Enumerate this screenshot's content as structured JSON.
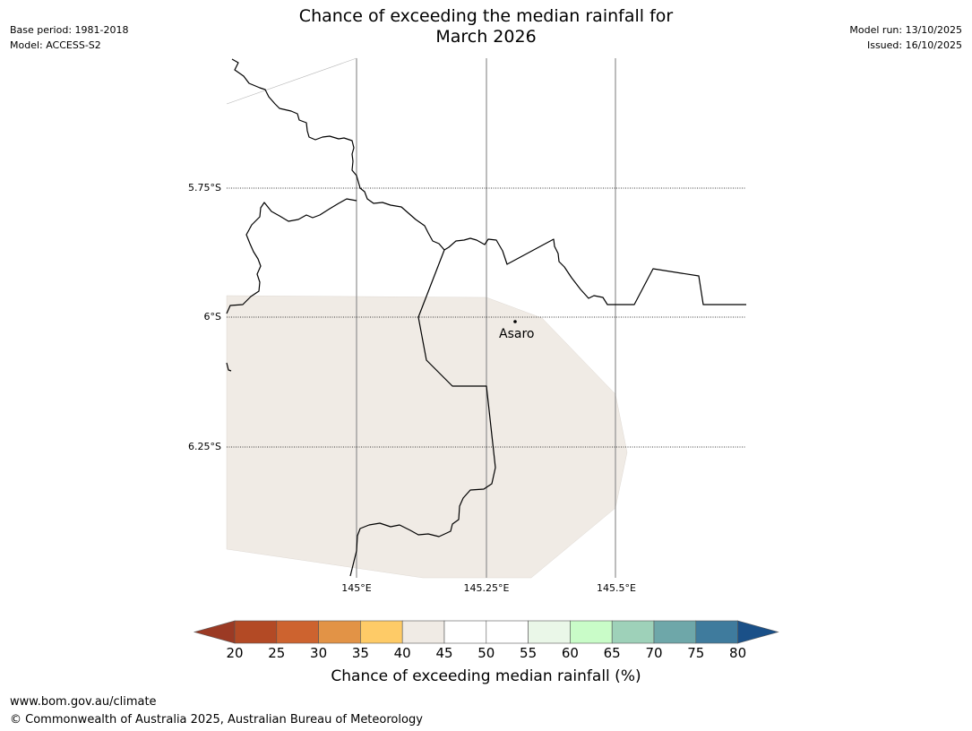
{
  "header": {
    "base_period": "Base period: 1981-2018",
    "model": "Model: ACCESS-S2",
    "model_run": "Model run: 13/10/2025",
    "issued": "Issued: 16/10/2025",
    "title_line1": "Chance of exceeding the median rainfall for",
    "title_line2": "March 2026"
  },
  "map": {
    "latitude_labels": [
      "5.75°S",
      "6°S",
      "6.25°S"
    ],
    "longitude_labels": [
      "145°E",
      "145.25°E",
      "145.5°E"
    ],
    "place_name": "Asaro",
    "shaded_category": "40-45",
    "shaded_color": "#f0ebe5"
  },
  "colorbar": {
    "ticks": [
      "20",
      "25",
      "30",
      "35",
      "40",
      "45",
      "50",
      "55",
      "60",
      "65",
      "70",
      "75",
      "80"
    ],
    "colors": [
      "#9b3a24",
      "#b34a25",
      "#cd632f",
      "#e29346",
      "#fecb67",
      "#f0ebe5",
      "#ffffff",
      "#ffffff",
      "#eaf7e8",
      "#c9fcc8",
      "#9ed1b9",
      "#6ea7a9",
      "#3f7b9d",
      "#1a5088"
    ],
    "title": "Chance of exceeding median rainfall (%)"
  },
  "footer": {
    "url": "www.bom.gov.au/climate",
    "copyright": "© Commonwealth of Australia 2025, Australian Bureau of Meteorology"
  }
}
